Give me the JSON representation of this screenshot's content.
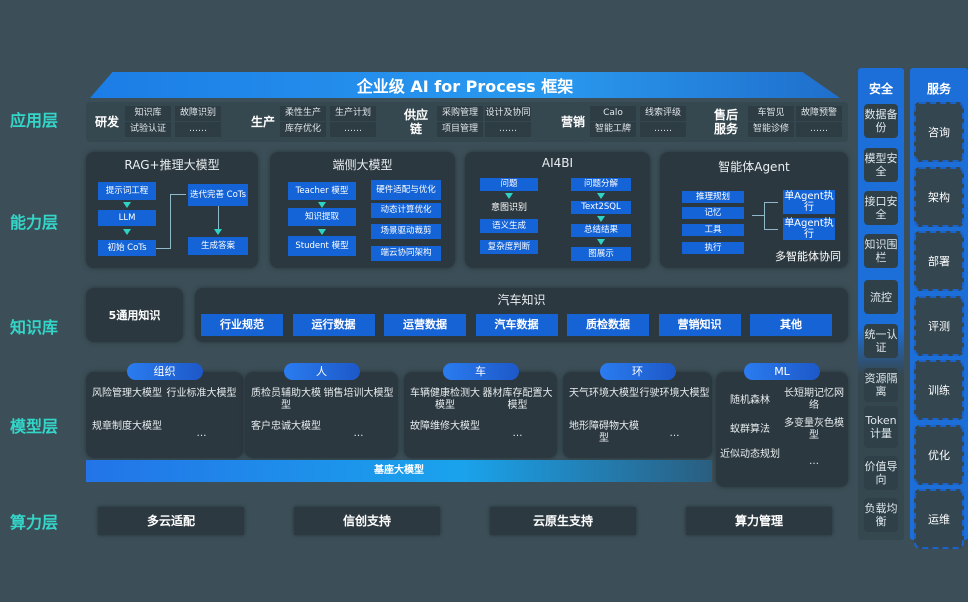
{
  "title": "企业级 AI for Process 框架",
  "layers": [
    "应用层",
    "能力层",
    "知识库",
    "模型层",
    "算力层"
  ],
  "app": [
    {
      "name": "研发",
      "cells": [
        "知识库",
        "试验认证",
        "故障识别",
        "……"
      ]
    },
    {
      "name": "生产",
      "cells": [
        "柔性生产",
        "库存优化",
        "生产计划",
        "……"
      ]
    },
    {
      "name": "供应链",
      "cells": [
        "采购管理",
        "项目管理",
        "设计及协同",
        "……"
      ]
    },
    {
      "name": "营销",
      "cells": [
        "Calo",
        "智能工牌",
        "线索评级",
        "……"
      ]
    },
    {
      "name": "售后服务",
      "cells": [
        "车智见",
        "智能诊修",
        "故障预警",
        "……"
      ]
    }
  ],
  "cap": {
    "rag": {
      "title": "RAG+推理大模型",
      "items": [
        "提示词工程",
        "LLM",
        "初始 CoTs",
        "迭代完善 CoTs",
        "生成答案"
      ]
    },
    "edge": {
      "title": "端侧大模型",
      "items": [
        "Teacher 模型",
        "知识提取",
        "Student 模型",
        "硬件适配与优化",
        "动态计算优化",
        "场景驱动裁剪",
        "端云协同架构"
      ]
    },
    "bi": {
      "title": "AI4BI",
      "items": [
        "问题",
        "意图识别",
        "语义生成",
        "复杂度判断",
        "问题分解",
        "Text2SQL",
        "总结结果",
        "图展示"
      ]
    },
    "agent": {
      "title": "智能体Agent",
      "items": [
        "推理规划",
        "记忆",
        "工具",
        "执行",
        "单Agent执行",
        "单Agent执行"
      ],
      "footer": "多智能体协同"
    }
  },
  "knowledge": {
    "general": "5通用知识",
    "auto_title": "汽车知识",
    "items": [
      "行业规范",
      "运行数据",
      "运营数据",
      "汽车数据",
      "质检数据",
      "营销知识",
      "其他"
    ]
  },
  "models": [
    {
      "tag": "组织",
      "items": [
        "风险管理大模型",
        "行业标准大模型",
        "规章制度大模型",
        "…"
      ]
    },
    {
      "tag": "人",
      "items": [
        "质检员辅助大模型",
        "销售培训大模型",
        "客户忠诚大模型",
        "…"
      ]
    },
    {
      "tag": "车",
      "items": [
        "车辆健康检测大模型",
        "器材库存配置大模型",
        "故障维修大模型",
        "…"
      ]
    },
    {
      "tag": "环",
      "items": [
        "天气环境大模型",
        "行驶环境大模型",
        "地形障碍物大模型",
        "…"
      ]
    },
    {
      "tag": "ML",
      "items": [
        "随机森林",
        "长短期记忆网络",
        "蚁群算法",
        "多变量灰色模型",
        "近似动态规划",
        "…"
      ]
    }
  ],
  "base_model": "基座大模型",
  "compute": [
    "多云适配",
    "信创支持",
    "云原生支持",
    "算力管理"
  ],
  "security": {
    "title": "安全",
    "items": [
      "数据备份",
      "模型安全",
      "接口安全",
      "知识围栏",
      "流控",
      "统一认证",
      "资源隔离",
      "Token计量",
      "价值导向",
      "负载均衡"
    ]
  },
  "service": {
    "title": "服务",
    "items": [
      "咨询",
      "架构",
      "部署",
      "评测",
      "训练",
      "优化",
      "运维"
    ]
  }
}
